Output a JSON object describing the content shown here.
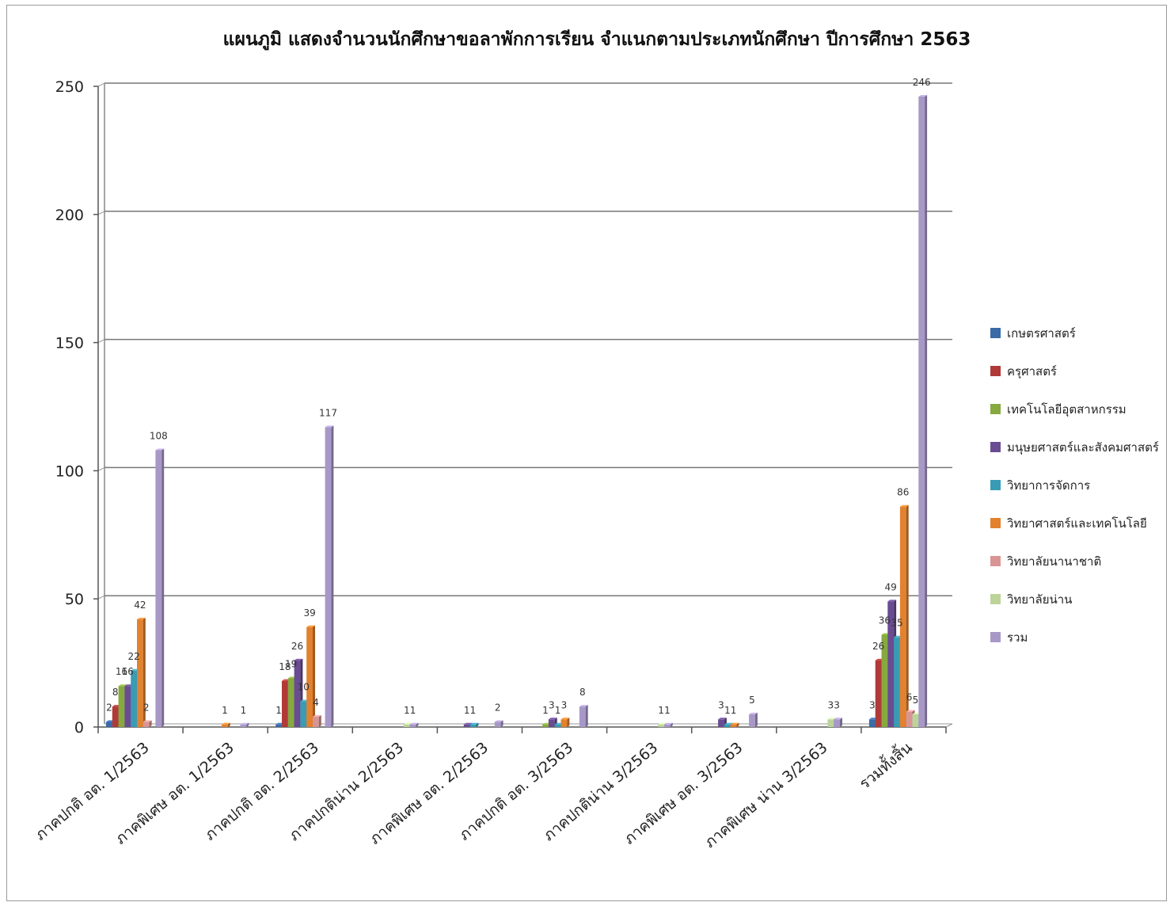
{
  "chart_data": {
    "type": "bar",
    "title": "แผนภูมิ แสดงจำนวนนักศึกษาขอลาพักการเรียน จำแนกตามประเภทนักศึกษา ปีการศึกษา 2563",
    "xlabel": "",
    "ylabel": "",
    "ylim": [
      0,
      250
    ],
    "yticks": [
      0,
      50,
      100,
      150,
      200,
      250
    ],
    "grid": true,
    "legend_position": "right",
    "categories": [
      "ภาคปกติ อต. 1/2563",
      "ภาคพิเศษ อต. 1/2563",
      "ภาคปกติ อต. 2/2563",
      "ภาคปกติน่าน 2/2563",
      "ภาคพิเศษ อต. 2/2563",
      "ภาคปกติ อต. 3/2563",
      "ภาคปกติน่าน 3/2563",
      "ภาคพิเศษ อต. 3/2563",
      "ภาคพิเศษ น่าน 3/2563",
      "รวมทั้งสิ้น"
    ],
    "series": [
      {
        "name": "เกษตรศาสตร์",
        "color": "#3a6aa8",
        "values": [
          2,
          null,
          1,
          null,
          null,
          null,
          null,
          null,
          null,
          3
        ]
      },
      {
        "name": "ครุศาสตร์",
        "color": "#b03a37",
        "values": [
          8,
          null,
          18,
          null,
          null,
          null,
          null,
          null,
          null,
          26
        ]
      },
      {
        "name": "เทคโนโลยีอุตสาหกรรม",
        "color": "#86a940",
        "values": [
          16,
          null,
          19,
          null,
          null,
          1,
          null,
          null,
          null,
          36
        ]
      },
      {
        "name": "มนุษยศาสตร์และสังคมศาสตร์",
        "color": "#6a4c92",
        "values": [
          16,
          null,
          26,
          null,
          1,
          3,
          null,
          3,
          null,
          49
        ]
      },
      {
        "name": "วิทยาการจัดการ",
        "color": "#3a9bb4",
        "values": [
          22,
          null,
          10,
          null,
          1,
          1,
          null,
          1,
          null,
          35
        ]
      },
      {
        "name": "วิทยาศาสตร์และเทคโนโลยี",
        "color": "#e2812e",
        "values": [
          42,
          1,
          39,
          null,
          null,
          3,
          null,
          1,
          null,
          86
        ]
      },
      {
        "name": "วิทยาลัยนานาชาติ",
        "color": "#d99594",
        "values": [
          2,
          null,
          4,
          null,
          null,
          null,
          null,
          null,
          null,
          6
        ]
      },
      {
        "name": "วิทยาลัยน่าน",
        "color": "#bcd39a",
        "values": [
          null,
          null,
          null,
          1,
          null,
          null,
          1,
          null,
          3,
          5
        ]
      },
      {
        "name": "รวม",
        "color": "#a898c8",
        "values": [
          108,
          1,
          117,
          1,
          2,
          8,
          1,
          5,
          3,
          246
        ]
      }
    ]
  }
}
